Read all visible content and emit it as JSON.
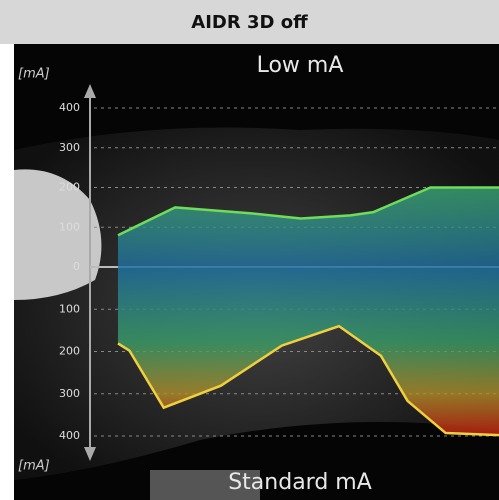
{
  "header": {
    "title": "AIDR 3D off"
  },
  "chart_data": [
    {
      "type": "area",
      "title": "Low mA",
      "y_label": "[mA]",
      "direction": "up",
      "x": [
        0,
        15,
        35,
        48,
        61,
        67,
        82,
        100
      ],
      "xlim": [
        0,
        100
      ],
      "values": [
        80,
        150,
        135,
        122,
        130,
        138,
        200,
        200
      ],
      "color": "#6fdc5a",
      "ylim": [
        0,
        400
      ],
      "yticks": [
        0,
        100,
        200,
        300,
        400
      ],
      "grid": true
    },
    {
      "type": "area",
      "title": "Standard mA",
      "y_label": "[mA]",
      "direction": "down",
      "x": [
        0,
        3,
        12,
        27,
        43,
        58,
        69,
        76,
        86,
        100
      ],
      "xlim": [
        0,
        100
      ],
      "values": [
        181,
        198,
        333,
        281,
        186,
        140,
        210,
        317,
        393,
        398
      ],
      "color": "#f0d040",
      "ylim": [
        0,
        400
      ],
      "yticks": [
        100,
        200,
        300,
        400
      ],
      "grid": true
    }
  ]
}
